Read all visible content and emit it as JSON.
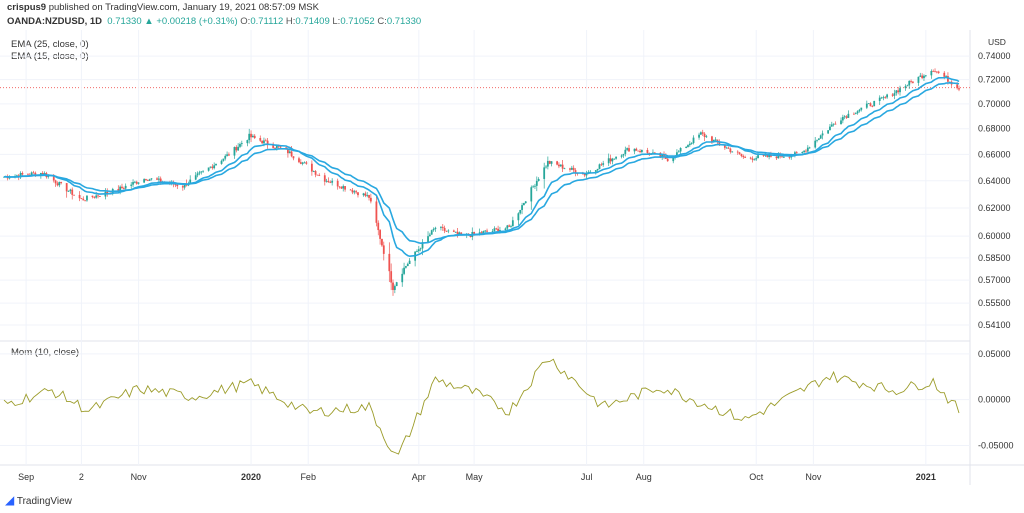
{
  "header": {
    "author": "crispus9",
    "published_text": "published on TradingView.com, January 19, 2021 08:57:09 MSK",
    "symbol": "OANDA:NZDUSD, 1D",
    "last": "0.71330",
    "change": "+0.00218 (+0.31%)",
    "o_label": "O:",
    "o": "0.71112",
    "h_label": "H:",
    "h": "0.71409",
    "l_label": "L:",
    "l": "0.71052",
    "c_label": "C:",
    "c": "0.71330"
  },
  "indicators": {
    "ema25": "EMA (25, close, 0)",
    "ema15": "EMA (15, close, 0)",
    "mom": "Mom (10, close)"
  },
  "currency": "USD",
  "footer": {
    "logo_text": "TradingView"
  },
  "colors": {
    "up": "#26a69a",
    "down": "#ef5350",
    "ema": "#29a8e0",
    "mom": "#9c9c2a",
    "grid": "#f0f3fa"
  },
  "chart_data": [
    {
      "type": "candlestick",
      "title": "OANDA:NZDUSD, 1D",
      "x_tick_labels": [
        "Sep",
        "2",
        "Nov",
        "2020",
        "Feb",
        "Apr",
        "May",
        "Jul",
        "Aug",
        "Oct",
        "Nov",
        "2021"
      ],
      "y_tick_labels": [
        "0.74000",
        "0.72000",
        "0.70000",
        "0.68000",
        "0.66000",
        "0.64000",
        "0.62000",
        "0.60000",
        "0.58500",
        "0.57000",
        "0.55500",
        "0.54100"
      ],
      "ylim": [
        0.541,
        0.741
      ],
      "scale": "log",
      "last_price": 0.7133,
      "keypoints": [
        {
          "x": "2019-08-20",
          "y": 0.643
        },
        {
          "x": "2019-09-10",
          "y": 0.646
        },
        {
          "x": "2019-10-01",
          "y": 0.626
        },
        {
          "x": "2019-10-20",
          "y": 0.633
        },
        {
          "x": "2019-11-05",
          "y": 0.642
        },
        {
          "x": "2019-11-25",
          "y": 0.636
        },
        {
          "x": "2019-12-20",
          "y": 0.66
        },
        {
          "x": "2019-12-31",
          "y": 0.674
        },
        {
          "x": "2020-01-20",
          "y": 0.663
        },
        {
          "x": "2020-02-10",
          "y": 0.641
        },
        {
          "x": "2020-03-05",
          "y": 0.628
        },
        {
          "x": "2020-03-18",
          "y": 0.565
        },
        {
          "x": "2020-03-24",
          "y": 0.578
        },
        {
          "x": "2020-04-10",
          "y": 0.606
        },
        {
          "x": "2020-04-25",
          "y": 0.6
        },
        {
          "x": "2020-05-20",
          "y": 0.606
        },
        {
          "x": "2020-06-10",
          "y": 0.654
        },
        {
          "x": "2020-06-30",
          "y": 0.645
        },
        {
          "x": "2020-07-25",
          "y": 0.665
        },
        {
          "x": "2020-08-15",
          "y": 0.656
        },
        {
          "x": "2020-09-01",
          "y": 0.676
        },
        {
          "x": "2020-09-25",
          "y": 0.657
        },
        {
          "x": "2020-10-25",
          "y": 0.66
        },
        {
          "x": "2020-11-15",
          "y": 0.688
        },
        {
          "x": "2020-12-10",
          "y": 0.705
        },
        {
          "x": "2021-01-05",
          "y": 0.729
        },
        {
          "x": "2021-01-19",
          "y": 0.7133
        }
      ],
      "series": [
        {
          "name": "EMA (25, close, 0)",
          "color": "#29a8e0"
        },
        {
          "name": "EMA (15, close, 0)",
          "color": "#29a8e0"
        }
      ]
    },
    {
      "type": "line",
      "title": "Mom (10, close)",
      "y_tick_labels": [
        "0.05000",
        "0.00000",
        "-0.05000"
      ],
      "ylim": [
        -0.068,
        0.052
      ],
      "keypoints": [
        {
          "x": "2019-08-20",
          "y": -0.005
        },
        {
          "x": "2019-09-15",
          "y": 0.01
        },
        {
          "x": "2019-10-05",
          "y": -0.012
        },
        {
          "x": "2019-11-01",
          "y": 0.012
        },
        {
          "x": "2019-12-01",
          "y": 0.003
        },
        {
          "x": "2019-12-31",
          "y": 0.018
        },
        {
          "x": "2020-02-01",
          "y": -0.014
        },
        {
          "x": "2020-03-05",
          "y": -0.008
        },
        {
          "x": "2020-03-20",
          "y": -0.065
        },
        {
          "x": "2020-04-10",
          "y": 0.022
        },
        {
          "x": "2020-05-01",
          "y": 0.008
        },
        {
          "x": "2020-05-20",
          "y": -0.013
        },
        {
          "x": "2020-06-10",
          "y": 0.047
        },
        {
          "x": "2020-07-10",
          "y": -0.008
        },
        {
          "x": "2020-08-10",
          "y": 0.014
        },
        {
          "x": "2020-09-25",
          "y": -0.022
        },
        {
          "x": "2020-11-10",
          "y": 0.026
        },
        {
          "x": "2020-12-15",
          "y": 0.01
        },
        {
          "x": "2021-01-05",
          "y": 0.02
        },
        {
          "x": "2021-01-19",
          "y": -0.012
        }
      ]
    }
  ]
}
